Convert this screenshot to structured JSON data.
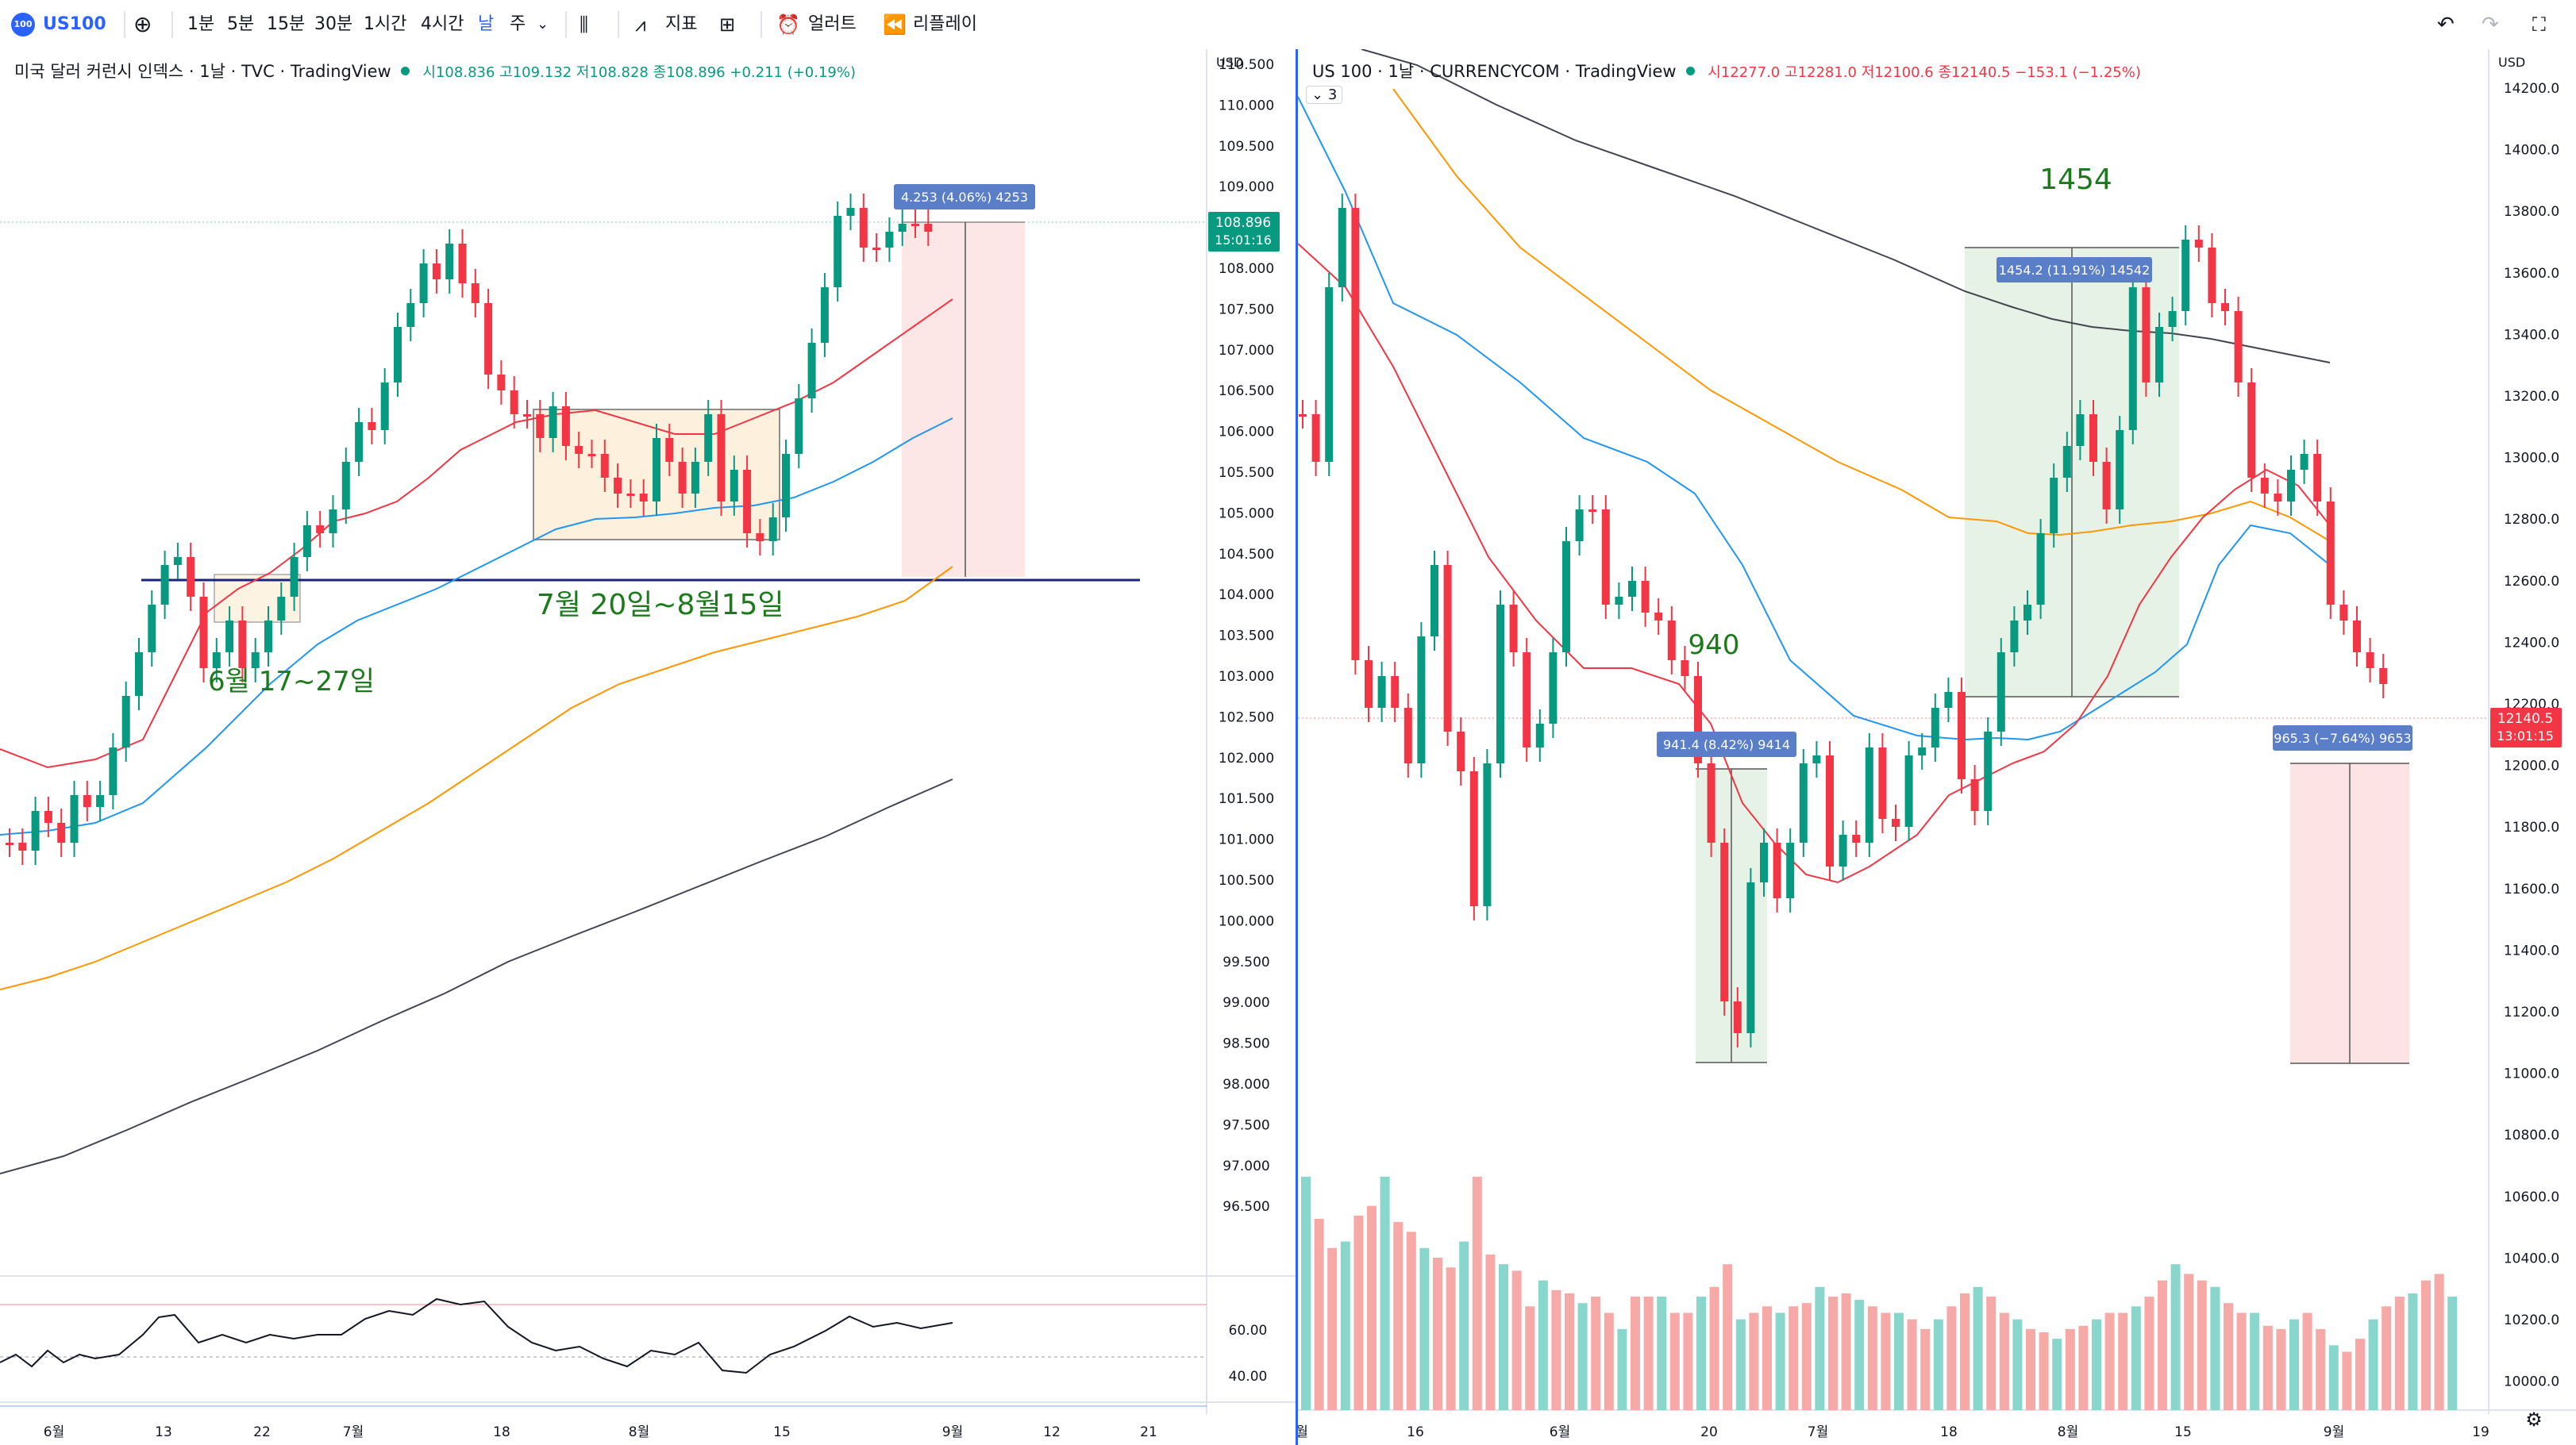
{
  "toolbar": {
    "symbol": "US100",
    "logo_text": "100",
    "intervals": [
      "1분",
      "5분",
      "15분",
      "30분",
      "1시간",
      "4시간",
      "날",
      "주"
    ],
    "active_interval": "날",
    "indicators_label": "지표",
    "alert_label": "얼러트",
    "replay_label": "리플레이"
  },
  "left_chart": {
    "title": "미국 달러 커런시 인덱스 · 1날 · TVC · TradingView",
    "ohlc": {
      "open": "108.836",
      "high": "109.132",
      "low": "108.828",
      "close": "108.896",
      "change": "+0.211 (+0.19%)"
    },
    "o_label": "시",
    "h_label": "고",
    "l_label": "저",
    "c_label": "종",
    "currency": "USD",
    "y_labels": [
      "110.500",
      "110.000",
      "109.500",
      "109.000",
      "108.500",
      "108.000",
      "107.500",
      "107.000",
      "106.500",
      "106.000",
      "105.500",
      "105.000",
      "104.500",
      "104.000",
      "103.500",
      "103.000",
      "102.500",
      "102.000",
      "101.500",
      "101.000",
      "100.500",
      "100.000",
      "99.500",
      "99.000",
      "98.500",
      "98.000",
      "97.500",
      "97.000",
      "96.500"
    ],
    "price_tag": "108.896",
    "countdown": "15:01:16",
    "measure_label": "4.253 (4.06%) 4253",
    "annotation_1": "6월 17~27일",
    "annotation_2": "7월 20일~8월15일",
    "rsi_labels": [
      "60.00",
      "40.00"
    ],
    "x_labels": [
      "6월",
      "13",
      "22",
      "7월",
      "18",
      "8월",
      "15",
      "9월",
      "12",
      "21"
    ]
  },
  "right_chart": {
    "title": "US 100 · 1날 · CURRENCYCOM · TradingView",
    "ohlc": {
      "open": "12277.0",
      "high": "12281.0",
      "low": "12100.6",
      "close": "12140.5",
      "change": "−153.1 (−1.25%)"
    },
    "o_label": "시",
    "h_label": "고",
    "l_label": "저",
    "c_label": "종",
    "currency": "USD",
    "indicator_count": "3",
    "y_labels": [
      "14200.0",
      "14000.0",
      "13800.0",
      "13600.0",
      "13400.0",
      "13200.0",
      "13000.0",
      "12800.0",
      "12600.0",
      "12400.0",
      "12200.0",
      "12000.0",
      "11800.0",
      "11600.0",
      "11400.0",
      "11200.0",
      "11000.0",
      "10800.0",
      "10600.0",
      "10400.0",
      "10200.0",
      "10000.0"
    ],
    "price_tag": "12140.5",
    "countdown": "13:01:15",
    "measure_1": "941.4 (8.42%) 9414",
    "measure_2": "1454.2 (11.91%) 14542",
    "measure_3": "965.3 (−7.64%) 9653",
    "annotation_1": "940",
    "annotation_2": "1454",
    "x_labels": [
      "월",
      "16",
      "6월",
      "20",
      "7월",
      "18",
      "8월",
      "15",
      "9월",
      "19"
    ]
  },
  "colors": {
    "up": "#089981",
    "down": "#f23645",
    "accent": "#2962ff",
    "ma_red": "#f23645",
    "ma_blue": "#2196f3",
    "ma_orange": "#ff9800",
    "ma_black": "#434651"
  }
}
